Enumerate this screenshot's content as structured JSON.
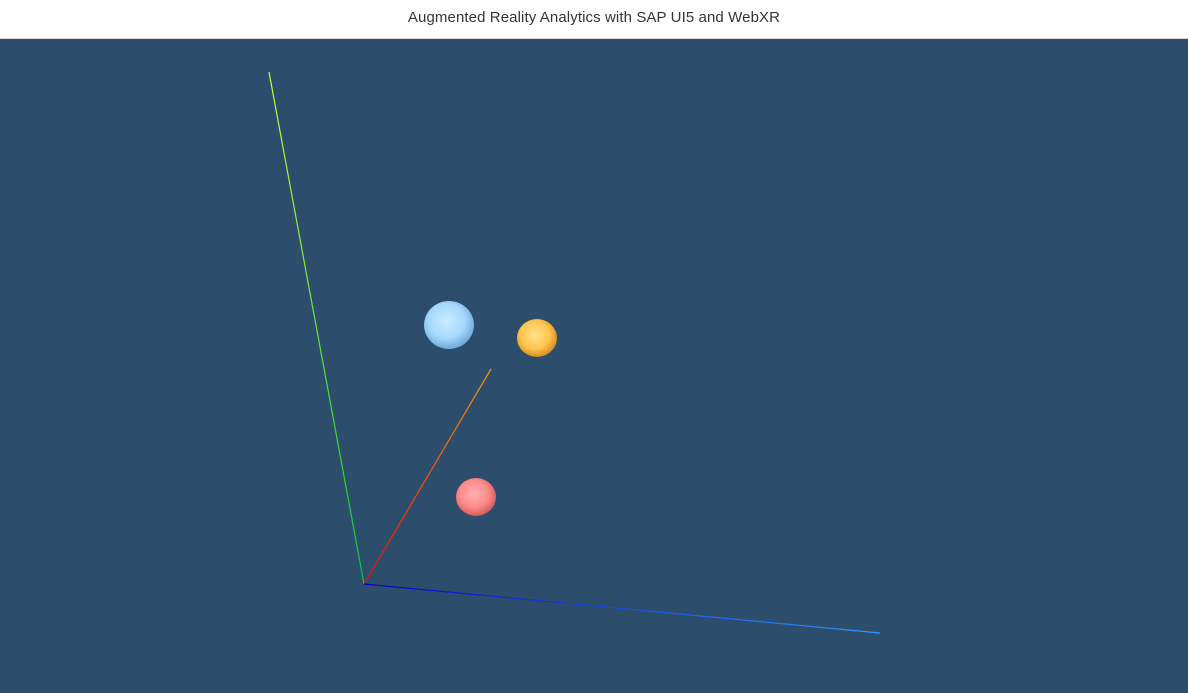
{
  "header": {
    "title": "Augmented Reality Analytics with SAP UI5 and WebXR"
  },
  "scene": {
    "background_color": "#2c4e6c",
    "axes": [
      {
        "name": "x-axis",
        "color_start": "#ff0000",
        "color_end": "#ff9900"
      },
      {
        "name": "y-axis",
        "color_start": "#00cc33",
        "color_end": "#ccff33"
      },
      {
        "name": "z-axis",
        "color_start": "#0000cc",
        "color_end": "#3399ff"
      }
    ],
    "data_points": [
      {
        "name": "blue-sphere",
        "color": "#a6d8ff",
        "shade": "#6aa6d6"
      },
      {
        "name": "orange-sphere",
        "color": "#ffc64d",
        "shade": "#d08a1c"
      },
      {
        "name": "red-sphere",
        "color": "#ff8a8a",
        "shade": "#d05656"
      }
    ]
  }
}
